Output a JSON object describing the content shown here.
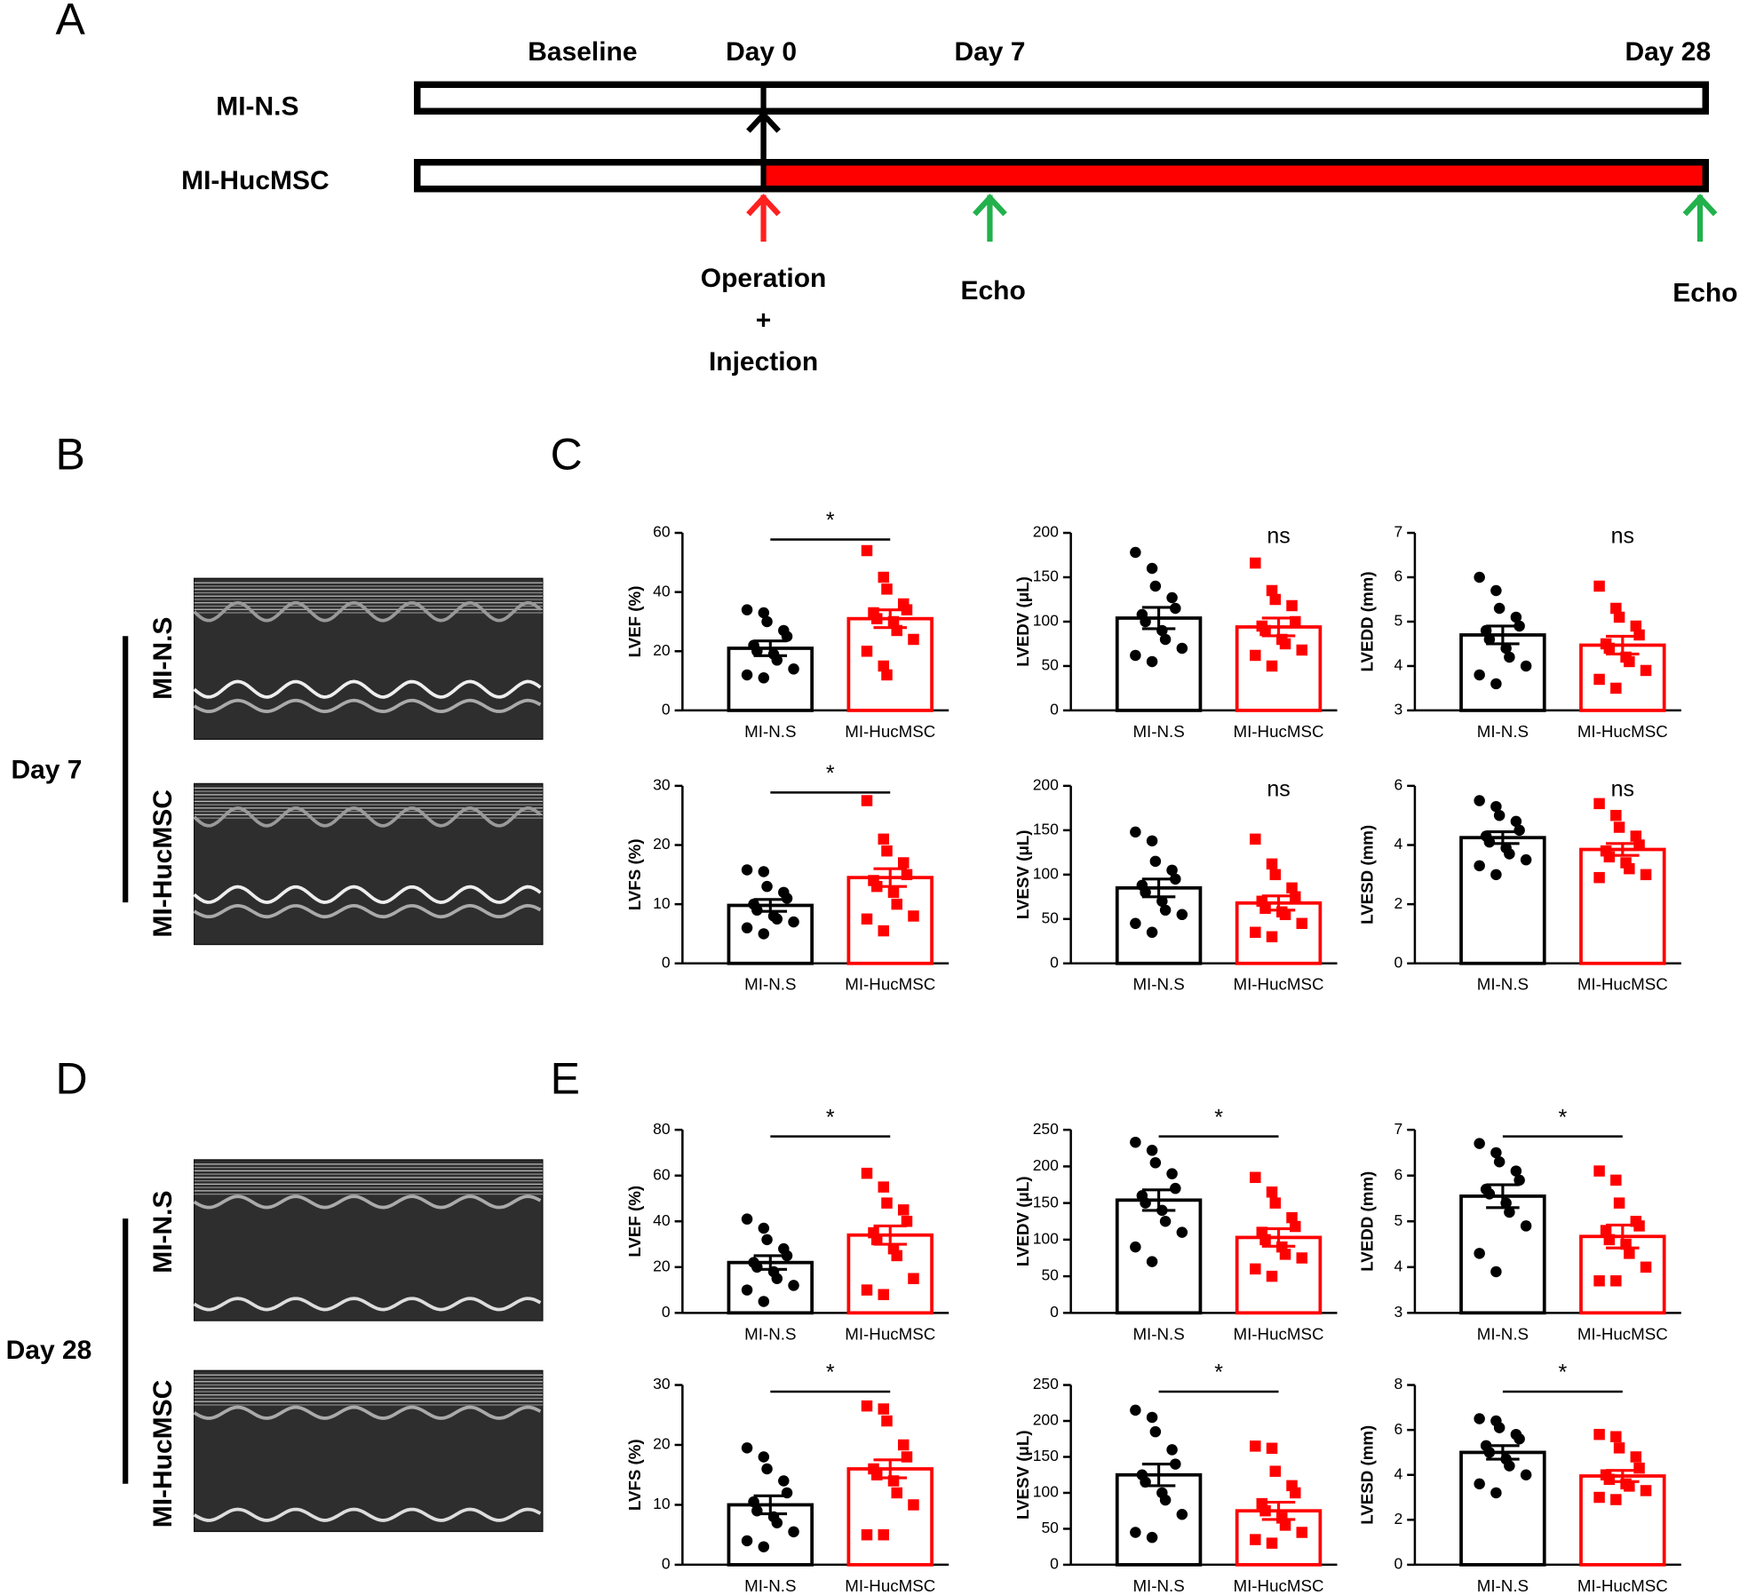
{
  "panel_labels": [
    "A",
    "B",
    "C",
    "D",
    "E"
  ],
  "timeline": {
    "phases": [
      "Baseline",
      "Day 0",
      "Day 7",
      "Day 28"
    ],
    "groups": [
      "MI-N.S",
      "MI-HucMSC"
    ],
    "annotations": [
      "Operation",
      "+",
      "Injection",
      "Echo",
      "Echo"
    ]
  },
  "echo": {
    "days": [
      "Day 7",
      "Day 28"
    ],
    "groups": [
      "MI-N.S",
      "MI-HucMSC"
    ]
  },
  "chart_data": [
    {
      "type": "bar",
      "ylabel": "LVEF (%)",
      "categories": [
        "MI-N.S",
        "MI-HucMSC"
      ],
      "values": [
        21,
        31
      ],
      "errors": [
        2.5,
        3
      ],
      "points": [
        [
          34,
          33,
          30,
          27,
          25,
          22,
          20,
          19,
          17,
          14,
          12,
          11
        ],
        [
          54,
          45,
          41,
          36,
          34,
          33,
          31,
          30,
          27,
          24,
          20,
          15,
          12
        ]
      ],
      "colors": [
        "#000000",
        "#ff0000"
      ],
      "markers": [
        "circle",
        "square"
      ],
      "ylim": [
        0,
        60
      ],
      "yticks": [
        0,
        20,
        40,
        60
      ],
      "significance": "*",
      "significance_line": true
    },
    {
      "type": "bar",
      "ylabel": "LVEDV (μL)",
      "categories": [
        "MI-N.S",
        "MI-HucMSC"
      ],
      "values": [
        104,
        94
      ],
      "errors": [
        12,
        10
      ],
      "points": [
        [
          178,
          160,
          140,
          127,
          115,
          108,
          100,
          90,
          80,
          70,
          62,
          55
        ],
        [
          166,
          135,
          125,
          118,
          100,
          95,
          90,
          80,
          75,
          68,
          62,
          50
        ]
      ],
      "colors": [
        "#000000",
        "#ff0000"
      ],
      "markers": [
        "circle",
        "square"
      ],
      "ylim": [
        0,
        200
      ],
      "yticks": [
        0,
        50,
        100,
        150,
        200
      ],
      "significance": "ns",
      "significance_line": false
    },
    {
      "type": "bar",
      "ylabel": "LVEDD (mm)",
      "categories": [
        "MI-N.S",
        "MI-HucMSC"
      ],
      "values": [
        4.7,
        4.47
      ],
      "errors": [
        0.2,
        0.2
      ],
      "points": [
        [
          6.0,
          5.7,
          5.3,
          5.1,
          4.9,
          4.8,
          4.6,
          4.4,
          4.2,
          4.0,
          3.8,
          3.6
        ],
        [
          5.8,
          5.3,
          5.1,
          4.9,
          4.7,
          4.5,
          4.4,
          4.2,
          4.1,
          3.9,
          3.7,
          3.5
        ]
      ],
      "colors": [
        "#000000",
        "#ff0000"
      ],
      "markers": [
        "circle",
        "square"
      ],
      "ylim": [
        3,
        7
      ],
      "yticks": [
        3,
        4,
        5,
        6,
        7
      ],
      "significance": "ns",
      "significance_line": false
    },
    {
      "type": "bar",
      "ylabel": "LVFS (%)",
      "categories": [
        "MI-N.S",
        "MI-HucMSC"
      ],
      "values": [
        9.8,
        14.5
      ],
      "errors": [
        1,
        1.5
      ],
      "points": [
        [
          15.8,
          15.5,
          13,
          12,
          11,
          10,
          9,
          8,
          7.5,
          7,
          6,
          5
        ],
        [
          27.5,
          21,
          19,
          17,
          15,
          14,
          13,
          12,
          10,
          8,
          7.5,
          5.5
        ]
      ],
      "colors": [
        "#000000",
        "#ff0000"
      ],
      "markers": [
        "circle",
        "square"
      ],
      "ylim": [
        0,
        30
      ],
      "yticks": [
        0,
        10,
        20,
        30
      ],
      "significance": "*",
      "significance_line": true
    },
    {
      "type": "bar",
      "ylabel": "LVESV (μL)",
      "categories": [
        "MI-N.S",
        "MI-HucMSC"
      ],
      "values": [
        85,
        68
      ],
      "errors": [
        10,
        8
      ],
      "points": [
        [
          148,
          138,
          115,
          105,
          95,
          88,
          80,
          70,
          60,
          55,
          45,
          35
        ],
        [
          140,
          112,
          100,
          85,
          75,
          70,
          62,
          58,
          55,
          45,
          35,
          30
        ]
      ],
      "colors": [
        "#000000",
        "#ff0000"
      ],
      "markers": [
        "circle",
        "square"
      ],
      "ylim": [
        0,
        200
      ],
      "yticks": [
        0,
        50,
        100,
        150,
        200
      ],
      "significance": "ns",
      "significance_line": false
    },
    {
      "type": "bar",
      "ylabel": "LVESD (mm)",
      "categories": [
        "MI-N.S",
        "MI-HucMSC"
      ],
      "values": [
        4.25,
        3.85
      ],
      "errors": [
        0.2,
        0.2
      ],
      "points": [
        [
          5.5,
          5.3,
          5.0,
          4.8,
          4.5,
          4.3,
          4.1,
          3.9,
          3.7,
          3.5,
          3.3,
          3.0
        ],
        [
          5.4,
          5.0,
          4.6,
          4.3,
          4.0,
          3.8,
          3.6,
          3.4,
          3.2,
          3.0,
          2.9
        ]
      ],
      "colors": [
        "#000000",
        "#ff0000"
      ],
      "markers": [
        "circle",
        "square"
      ],
      "ylim": [
        0,
        6
      ],
      "yticks": [
        0,
        2,
        4,
        6
      ],
      "significance": "ns",
      "significance_line": false
    },
    {
      "type": "bar",
      "ylabel": "LVEF (%)",
      "categories": [
        "MI-N.S",
        "MI-HucMSC"
      ],
      "values": [
        22,
        34
      ],
      "errors": [
        3,
        4
      ],
      "points": [
        [
          41,
          37,
          32,
          28,
          25,
          22,
          20,
          18,
          15,
          12,
          10,
          5
        ],
        [
          61,
          55,
          48,
          45,
          40,
          35,
          32,
          28,
          25,
          15,
          10,
          8
        ]
      ],
      "colors": [
        "#000000",
        "#ff0000"
      ],
      "markers": [
        "circle",
        "square"
      ],
      "ylim": [
        0,
        80
      ],
      "yticks": [
        0,
        20,
        40,
        60,
        80
      ],
      "significance": "*",
      "significance_line": true
    },
    {
      "type": "bar",
      "ylabel": "LVEDV (μL)",
      "categories": [
        "MI-N.S",
        "MI-HucMSC"
      ],
      "values": [
        154,
        103
      ],
      "errors": [
        14,
        12
      ],
      "points": [
        [
          233,
          222,
          205,
          190,
          170,
          160,
          150,
          140,
          125,
          110,
          90,
          70
        ],
        [
          185,
          165,
          150,
          130,
          118,
          110,
          100,
          90,
          80,
          75,
          60,
          50
        ]
      ],
      "colors": [
        "#000000",
        "#ff0000"
      ],
      "markers": [
        "circle",
        "square"
      ],
      "ylim": [
        0,
        250
      ],
      "yticks": [
        0,
        50,
        100,
        150,
        200,
        250
      ],
      "significance": "*",
      "significance_line": true
    },
    {
      "type": "bar",
      "ylabel": "LVEDD (mm)",
      "categories": [
        "MI-N.S",
        "MI-HucMSC"
      ],
      "values": [
        5.55,
        4.67
      ],
      "errors": [
        0.25,
        0.25
      ],
      "points": [
        [
          6.7,
          6.5,
          6.3,
          6.1,
          5.9,
          5.7,
          5.6,
          5.4,
          5.2,
          4.9,
          4.3,
          3.9
        ],
        [
          6.1,
          5.9,
          5.4,
          5.0,
          4.9,
          4.8,
          4.6,
          4.5,
          4.3,
          4.0,
          3.7,
          3.7
        ]
      ],
      "colors": [
        "#000000",
        "#ff0000"
      ],
      "markers": [
        "circle",
        "square"
      ],
      "ylim": [
        3,
        7
      ],
      "yticks": [
        3,
        4,
        5,
        6,
        7
      ],
      "significance": "*",
      "significance_line": true
    },
    {
      "type": "bar",
      "ylabel": "LVFS (%)",
      "categories": [
        "MI-N.S",
        "MI-HucMSC"
      ],
      "values": [
        10,
        16
      ],
      "errors": [
        1.5,
        1.5
      ],
      "points": [
        [
          19.5,
          18,
          16,
          14,
          12,
          10.5,
          9,
          8,
          7,
          5.5,
          4,
          3
        ],
        [
          26.5,
          26,
          24,
          20,
          18,
          16,
          15,
          14,
          12,
          10,
          5,
          5
        ]
      ],
      "colors": [
        "#000000",
        "#ff0000"
      ],
      "markers": [
        "circle",
        "square"
      ],
      "ylim": [
        0,
        30
      ],
      "yticks": [
        0,
        10,
        20,
        30
      ],
      "significance": "*",
      "significance_line": true
    },
    {
      "type": "bar",
      "ylabel": "LVESV (μL)",
      "categories": [
        "MI-N.S",
        "MI-HucMSC"
      ],
      "values": [
        125,
        75
      ],
      "errors": [
        15,
        12
      ],
      "points": [
        [
          215,
          205,
          185,
          160,
          140,
          125,
          115,
          100,
          90,
          70,
          45,
          38
        ],
        [
          165,
          162,
          130,
          110,
          100,
          85,
          75,
          65,
          55,
          45,
          35,
          30
        ]
      ],
      "colors": [
        "#000000",
        "#ff0000"
      ],
      "markers": [
        "circle",
        "square"
      ],
      "ylim": [
        0,
        250
      ],
      "yticks": [
        0,
        50,
        100,
        150,
        200,
        250
      ],
      "significance": "*",
      "significance_line": true
    },
    {
      "type": "bar",
      "ylabel": "LVESD (mm)",
      "categories": [
        "MI-N.S",
        "MI-HucMSC"
      ],
      "values": [
        5.0,
        3.95
      ],
      "errors": [
        0.3,
        0.25
      ],
      "points": [
        [
          6.5,
          6.4,
          6.1,
          5.8,
          5.6,
          5.3,
          5.0,
          4.7,
          4.4,
          4.0,
          3.6,
          3.2
        ],
        [
          5.8,
          5.7,
          5.2,
          4.8,
          4.3,
          4.0,
          3.8,
          3.6,
          3.5,
          3.3,
          3.0,
          2.9
        ]
      ],
      "colors": [
        "#000000",
        "#ff0000"
      ],
      "markers": [
        "circle",
        "square"
      ],
      "ylim": [
        0,
        8
      ],
      "yticks": [
        0,
        2,
        4,
        6,
        8
      ],
      "significance": "*",
      "significance_line": true
    }
  ]
}
